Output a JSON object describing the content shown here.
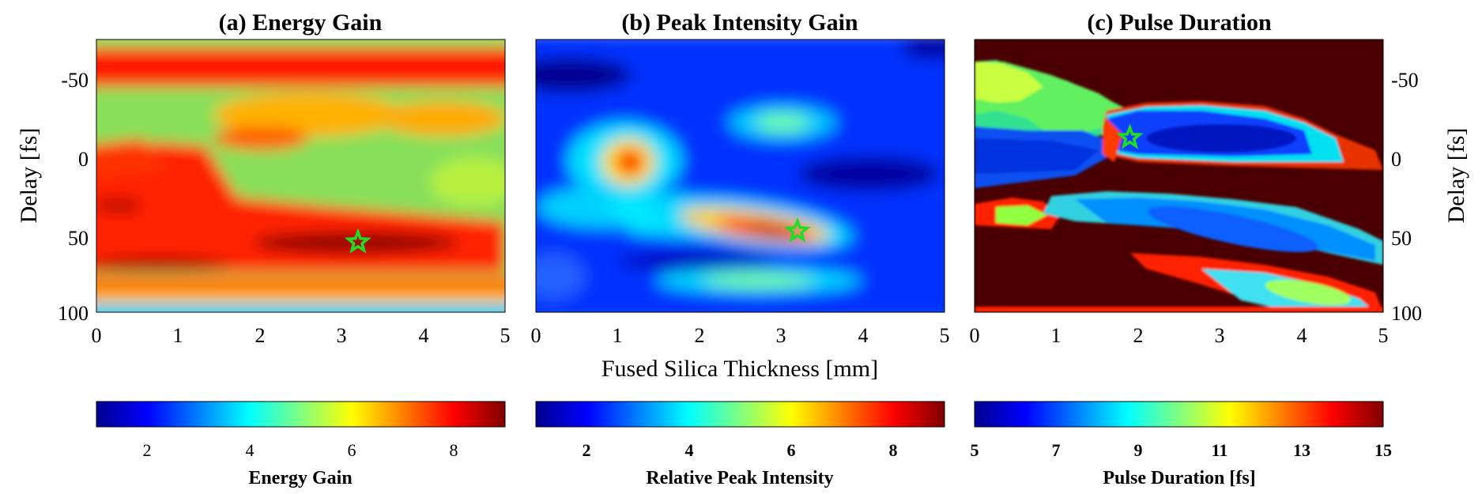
{
  "chart_data": [
    {
      "type": "heatmap",
      "title": "(a) Energy Gain",
      "xlabel": "Fused Silica Thickness [mm]",
      "ylabel": "Delay [fs]",
      "xlim": [
        0,
        5
      ],
      "ylim": [
        -75,
        100
      ],
      "x_ticks": [
        "0",
        "1",
        "2",
        "3",
        "4",
        "5"
      ],
      "y_ticks": [
        "-50",
        "0",
        "50",
        "100"
      ],
      "colorbar": {
        "label": "Energy Gain",
        "range": [
          1,
          9
        ],
        "ticks": [
          "2",
          "4",
          "6",
          "8"
        ]
      },
      "marker": {
        "shape": "star",
        "color": "#22dd22",
        "x": 3.2,
        "y": 55
      }
    },
    {
      "type": "heatmap",
      "title": "(b) Peak Intensity Gain",
      "xlabel": "Fused Silica Thickness [mm]",
      "ylabel": "",
      "xlim": [
        0,
        5
      ],
      "ylim": [
        -75,
        100
      ],
      "x_ticks": [
        "0",
        "1",
        "2",
        "3",
        "4",
        "5"
      ],
      "colorbar": {
        "label": "Relative Peak Intensity",
        "range": [
          1,
          9
        ],
        "ticks": [
          "2",
          "4",
          "6",
          "8"
        ]
      },
      "marker": {
        "shape": "star",
        "color": "#22dd22",
        "x": 3.2,
        "y": 48
      }
    },
    {
      "type": "heatmap",
      "title": "(c) Pulse Duration",
      "xlabel": "Fused Silica Thickness [mm]",
      "ylabel": "Delay [fs]",
      "xlim": [
        0,
        5
      ],
      "ylim": [
        -75,
        100
      ],
      "x_ticks": [
        "0",
        "1",
        "2",
        "3",
        "4",
        "5"
      ],
      "y_ticks": [
        "-50",
        "0",
        "50",
        "100"
      ],
      "colorbar": {
        "label": "Pulse Duration [fs]",
        "range": [
          5,
          15
        ],
        "ticks": [
          "5",
          "7",
          "9",
          "11",
          "13",
          "15"
        ]
      },
      "marker": {
        "shape": "star",
        "color": "#22dd22",
        "x": 1.9,
        "y": -12
      }
    }
  ],
  "shared_xlabel": "Fused Silica Thickness [mm]",
  "colormap": "jet"
}
